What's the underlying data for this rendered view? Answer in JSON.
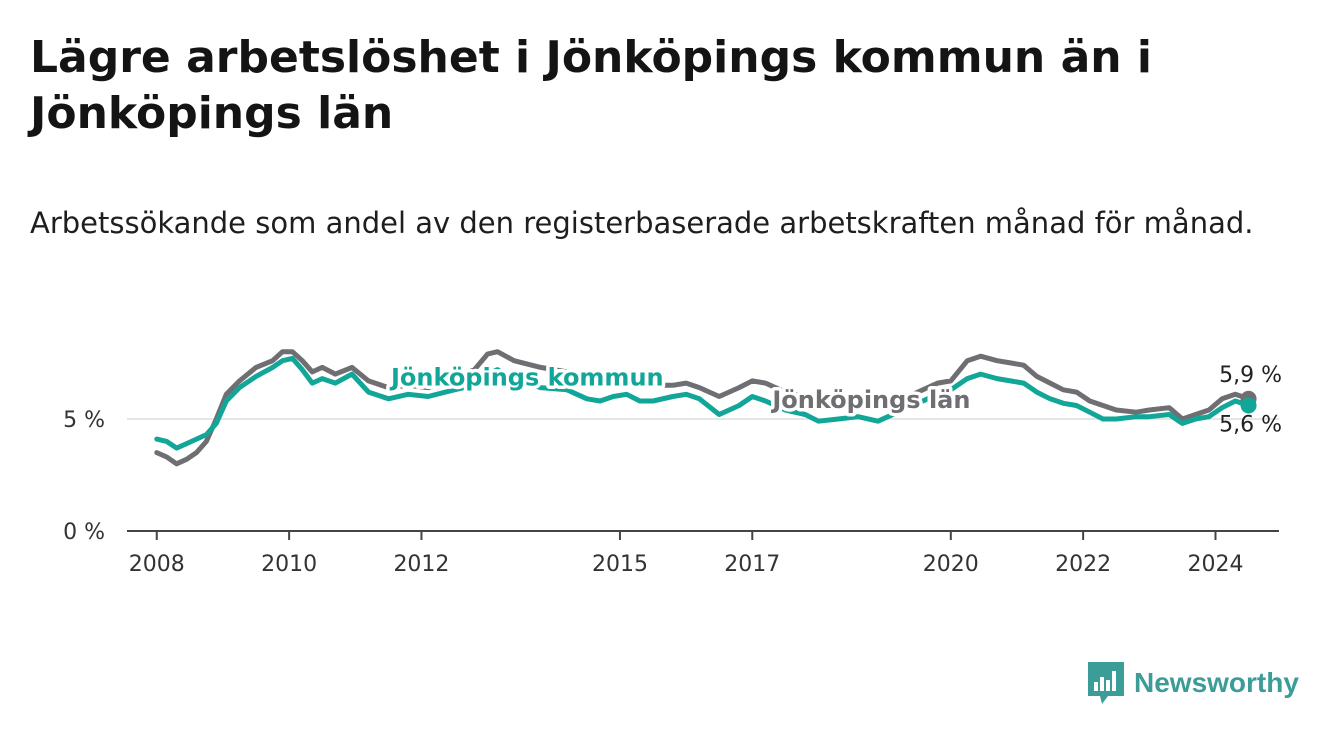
{
  "title": "Lägre arbetslöshet i Jönköpings kommun än i Jönköpings län",
  "subtitle": "Arbetssökande som andel av den registerbaserade arbetskraften månad för månad.",
  "brand": {
    "name": "Newsworthy"
  },
  "colors": {
    "kommun": "#12a698",
    "lan": "#6f6f73",
    "axis": "#444444",
    "grid": "#dddddd",
    "brand": "#3c9c97"
  },
  "chart_data": {
    "type": "line",
    "title": "Lägre arbetslöshet i Jönköpings kommun än i Jönköpings län",
    "subtitle": "Arbetssökande som andel av den registerbaserade arbetskraften månad för månad.",
    "xlabel": "",
    "ylabel": "",
    "xlim": [
      2007.55,
      2024.96
    ],
    "ylim": [
      0,
      8.3
    ],
    "x_ticks": [
      {
        "value": 2008,
        "label": "2008"
      },
      {
        "value": 2010,
        "label": "2010"
      },
      {
        "value": 2012,
        "label": "2012"
      },
      {
        "value": 2015,
        "label": "2015"
      },
      {
        "value": 2017,
        "label": "2017"
      },
      {
        "value": 2020,
        "label": "2020"
      },
      {
        "value": 2022,
        "label": "2022"
      },
      {
        "value": 2024,
        "label": "2024"
      }
    ],
    "y_ticks": [
      {
        "value": 0,
        "label": "0 %"
      },
      {
        "value": 5,
        "label": "5 %"
      }
    ],
    "grid": true,
    "series": [
      {
        "name": "Jönköpings län",
        "label": "Jönköpings län",
        "color": "#6f6f73",
        "end_label": "5,9 %",
        "points": [
          [
            2008.0,
            3.5
          ],
          [
            2008.15,
            3.3
          ],
          [
            2008.3,
            3.0
          ],
          [
            2008.45,
            3.2
          ],
          [
            2008.6,
            3.5
          ],
          [
            2008.75,
            4.0
          ],
          [
            2008.9,
            5.0
          ],
          [
            2009.05,
            6.1
          ],
          [
            2009.25,
            6.7
          ],
          [
            2009.5,
            7.3
          ],
          [
            2009.75,
            7.6
          ],
          [
            2009.9,
            8.0
          ],
          [
            2010.05,
            8.0
          ],
          [
            2010.2,
            7.6
          ],
          [
            2010.35,
            7.1
          ],
          [
            2010.5,
            7.3
          ],
          [
            2010.7,
            7.0
          ],
          [
            2010.95,
            7.3
          ],
          [
            2011.2,
            6.7
          ],
          [
            2011.5,
            6.4
          ],
          [
            2011.8,
            6.5
          ],
          [
            2012.1,
            6.4
          ],
          [
            2012.5,
            6.8
          ],
          [
            2012.8,
            7.2
          ],
          [
            2013.0,
            7.9
          ],
          [
            2013.15,
            8.0
          ],
          [
            2013.4,
            7.6
          ],
          [
            2013.8,
            7.3
          ],
          [
            2014.2,
            7.1
          ],
          [
            2014.5,
            6.7
          ],
          [
            2014.7,
            6.6
          ],
          [
            2014.9,
            6.7
          ],
          [
            2015.1,
            6.6
          ],
          [
            2015.3,
            6.5
          ],
          [
            2015.5,
            6.5
          ],
          [
            2015.8,
            6.5
          ],
          [
            2016.0,
            6.6
          ],
          [
            2016.2,
            6.4
          ],
          [
            2016.5,
            6.0
          ],
          [
            2016.8,
            6.4
          ],
          [
            2017.0,
            6.7
          ],
          [
            2017.2,
            6.6
          ],
          [
            2017.5,
            6.2
          ],
          [
            2017.8,
            6.0
          ],
          [
            2018.0,
            5.7
          ],
          [
            2018.3,
            5.6
          ],
          [
            2018.6,
            5.6
          ],
          [
            2018.9,
            5.6
          ],
          [
            2019.2,
            5.8
          ],
          [
            2019.5,
            6.2
          ],
          [
            2019.8,
            6.6
          ],
          [
            2020.0,
            6.7
          ],
          [
            2020.25,
            7.6
          ],
          [
            2020.45,
            7.8
          ],
          [
            2020.7,
            7.6
          ],
          [
            2020.9,
            7.5
          ],
          [
            2021.1,
            7.4
          ],
          [
            2021.3,
            6.9
          ],
          [
            2021.5,
            6.6
          ],
          [
            2021.7,
            6.3
          ],
          [
            2021.9,
            6.2
          ],
          [
            2022.1,
            5.8
          ],
          [
            2022.3,
            5.6
          ],
          [
            2022.5,
            5.4
          ],
          [
            2022.8,
            5.3
          ],
          [
            2023.0,
            5.4
          ],
          [
            2023.3,
            5.5
          ],
          [
            2023.5,
            5.0
          ],
          [
            2023.7,
            5.2
          ],
          [
            2023.9,
            5.4
          ],
          [
            2024.1,
            5.9
          ],
          [
            2024.3,
            6.1
          ],
          [
            2024.5,
            5.9
          ]
        ]
      },
      {
        "name": "Jönköpings kommun",
        "label": "Jönköpings kommun",
        "color": "#12a698",
        "end_label": "5,6 %",
        "points": [
          [
            2008.0,
            4.1
          ],
          [
            2008.15,
            4.0
          ],
          [
            2008.3,
            3.7
          ],
          [
            2008.45,
            3.9
          ],
          [
            2008.6,
            4.1
          ],
          [
            2008.75,
            4.3
          ],
          [
            2008.9,
            4.8
          ],
          [
            2009.05,
            5.8
          ],
          [
            2009.25,
            6.4
          ],
          [
            2009.5,
            6.9
          ],
          [
            2009.75,
            7.3
          ],
          [
            2009.9,
            7.6
          ],
          [
            2010.05,
            7.7
          ],
          [
            2010.2,
            7.2
          ],
          [
            2010.35,
            6.6
          ],
          [
            2010.5,
            6.8
          ],
          [
            2010.7,
            6.6
          ],
          [
            2010.95,
            7.0
          ],
          [
            2011.2,
            6.2
          ],
          [
            2011.5,
            5.9
          ],
          [
            2011.8,
            6.1
          ],
          [
            2012.1,
            6.0
          ],
          [
            2012.5,
            6.3
          ],
          [
            2012.8,
            6.5
          ],
          [
            2013.0,
            7.0
          ],
          [
            2013.15,
            7.2
          ],
          [
            2013.4,
            6.8
          ],
          [
            2013.8,
            6.4
          ],
          [
            2014.2,
            6.3
          ],
          [
            2014.5,
            5.9
          ],
          [
            2014.7,
            5.8
          ],
          [
            2014.9,
            6.0
          ],
          [
            2015.1,
            6.1
          ],
          [
            2015.3,
            5.8
          ],
          [
            2015.5,
            5.8
          ],
          [
            2015.8,
            6.0
          ],
          [
            2016.0,
            6.1
          ],
          [
            2016.2,
            5.9
          ],
          [
            2016.5,
            5.2
          ],
          [
            2016.8,
            5.6
          ],
          [
            2017.0,
            6.0
          ],
          [
            2017.2,
            5.8
          ],
          [
            2017.5,
            5.4
          ],
          [
            2017.8,
            5.2
          ],
          [
            2018.0,
            4.9
          ],
          [
            2018.3,
            5.0
          ],
          [
            2018.6,
            5.1
          ],
          [
            2018.9,
            4.9
          ],
          [
            2019.2,
            5.3
          ],
          [
            2019.5,
            5.7
          ],
          [
            2019.8,
            6.1
          ],
          [
            2020.0,
            6.3
          ],
          [
            2020.25,
            6.8
          ],
          [
            2020.45,
            7.0
          ],
          [
            2020.7,
            6.8
          ],
          [
            2020.9,
            6.7
          ],
          [
            2021.1,
            6.6
          ],
          [
            2021.3,
            6.2
          ],
          [
            2021.5,
            5.9
          ],
          [
            2021.7,
            5.7
          ],
          [
            2021.9,
            5.6
          ],
          [
            2022.1,
            5.3
          ],
          [
            2022.3,
            5.0
          ],
          [
            2022.5,
            5.0
          ],
          [
            2022.8,
            5.1
          ],
          [
            2023.0,
            5.1
          ],
          [
            2023.3,
            5.2
          ],
          [
            2023.5,
            4.8
          ],
          [
            2023.7,
            5.0
          ],
          [
            2023.9,
            5.1
          ],
          [
            2024.1,
            5.5
          ],
          [
            2024.3,
            5.8
          ],
          [
            2024.5,
            5.6
          ]
        ]
      }
    ],
    "annotations": [
      {
        "text": "Jönköpings kommun",
        "series": "Jönköpings kommun",
        "at_x": 2013.6,
        "at_y": 6.9
      },
      {
        "text": "Jönköpings län",
        "series": "Jönköpings län",
        "at_x": 2018.8,
        "at_y": 5.9
      }
    ]
  }
}
